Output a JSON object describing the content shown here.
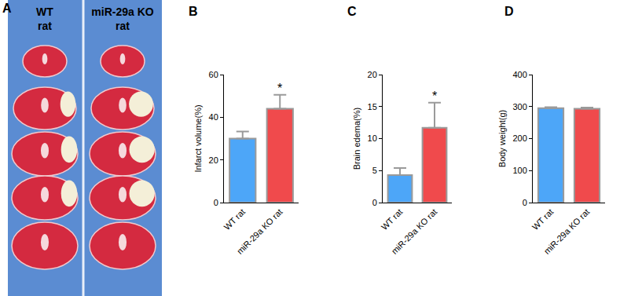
{
  "image_panel": {
    "panel": "A",
    "columns": [
      [
        "WT",
        "rat"
      ],
      [
        "miR-29a KO",
        "rat"
      ]
    ]
  },
  "chart_data": [
    {
      "panel": "B",
      "type": "bar",
      "categories": [
        "WT rat",
        "miR-29a KO rat"
      ],
      "values": [
        30,
        44
      ],
      "errors": [
        3.3,
        6.5
      ],
      "colors": [
        "#4da6f8",
        "#f04a4c"
      ],
      "ylabel": "Infarct volume(%)",
      "ylim": [
        0,
        60
      ],
      "yticks": [
        0,
        20,
        40,
        60
      ],
      "annotations": [
        {
          "category": "miR-29a KO rat",
          "text": "*"
        }
      ]
    },
    {
      "panel": "C",
      "type": "bar",
      "categories": [
        "WT rat",
        "miR-29a KO rat"
      ],
      "values": [
        4.3,
        11.7
      ],
      "errors": [
        1.1,
        3.9
      ],
      "colors": [
        "#4da6f8",
        "#f04a4c"
      ],
      "ylabel": "Brain edema(%)",
      "ylim": [
        0,
        20
      ],
      "yticks": [
        0,
        5,
        10,
        15,
        20
      ],
      "annotations": [
        {
          "category": "miR-29a KO rat",
          "text": "*"
        }
      ]
    },
    {
      "panel": "D",
      "type": "bar",
      "categories": [
        "WT rat",
        "miR-29a KO rat"
      ],
      "values": [
        295,
        293
      ],
      "errors": [
        3,
        4
      ],
      "colors": [
        "#4da6f8",
        "#f04a4c"
      ],
      "ylabel": "Body weight(g)",
      "ylim": [
        0,
        400
      ],
      "yticks": [
        0,
        100,
        200,
        300,
        400
      ]
    }
  ]
}
